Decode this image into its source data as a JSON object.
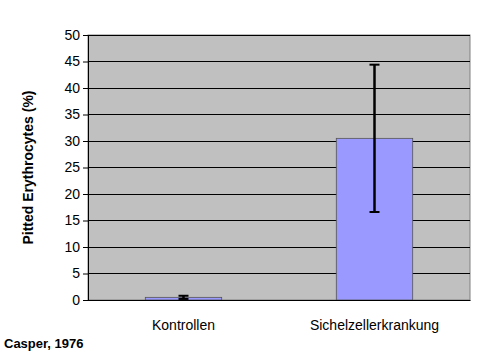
{
  "chart_data": {
    "type": "bar",
    "categories": [
      "Kontrollen",
      "Sichelzellerkrankung"
    ],
    "values": [
      0.5,
      30.5
    ],
    "errors": [
      0.3,
      13.9
    ],
    "color": "#9999ff",
    "y_label": "Pitted Erythrocytes (%)",
    "annotation": "Casper, 1976",
    "ylim": [
      0,
      50
    ],
    "yticks": [
      0,
      5,
      10,
      15,
      20,
      25,
      30,
      35,
      40,
      45,
      50
    ],
    "grid": true
  }
}
